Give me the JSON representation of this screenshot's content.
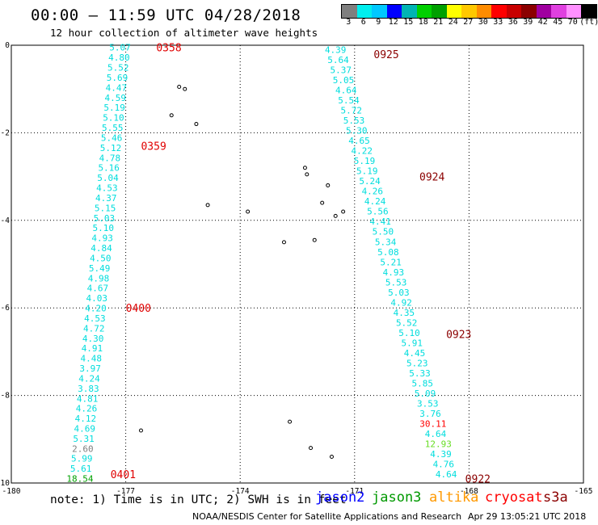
{
  "header": {
    "title": "00:00 – 11:59 UTC 04/28/2018",
    "subtitle": "12 hour collection of altimeter wave heights"
  },
  "color_scale": {
    "colors": [
      "#7f7f7f",
      "#00eeee",
      "#00c8ff",
      "#0000ff",
      "#00b4b4",
      "#00d000",
      "#00a000",
      "#ffff00",
      "#ffc800",
      "#ff8c00",
      "#ff0000",
      "#c80000",
      "#8b0000",
      "#a000a0",
      "#e040e0",
      "#ff90ff",
      "#000000"
    ],
    "labels": [
      "3",
      "6",
      "9",
      "12",
      "15",
      "18",
      "21",
      "24",
      "27",
      "30",
      "33",
      "36",
      "39",
      "42",
      "45",
      "70",
      "(ft)"
    ]
  },
  "map": {
    "x_axis": {
      "range": [
        -180,
        -165
      ],
      "ticks": [
        "-180",
        "-177",
        "-174",
        "-171",
        "-168",
        "-165"
      ]
    },
    "y_axis": {
      "range": [
        0,
        -10
      ],
      "ticks": [
        "0",
        "-2",
        "-4",
        "-6",
        "-8",
        "-10"
      ]
    },
    "pass_times": [
      {
        "label": "0358",
        "color": "#e00000",
        "lon": -176.2,
        "lat": -0.05
      },
      {
        "label": "0359",
        "color": "#e00000",
        "lon": -176.6,
        "lat": -2.3
      },
      {
        "label": "0400",
        "color": "#e00000",
        "lon": -177.0,
        "lat": -6.0
      },
      {
        "label": "0401",
        "color": "#e00000",
        "lon": -177.4,
        "lat": -9.8
      },
      {
        "label": "0925",
        "color": "#8b0000",
        "lon": -170.5,
        "lat": -0.2
      },
      {
        "label": "0924",
        "color": "#8b0000",
        "lon": -169.3,
        "lat": -3.0
      },
      {
        "label": "0923",
        "color": "#8b0000",
        "lon": -168.6,
        "lat": -6.6
      },
      {
        "label": "0922",
        "color": "#8b0000",
        "lon": -168.1,
        "lat": -9.9
      }
    ],
    "track_a": {
      "start": [
        -177.15,
        -0.05
      ],
      "end": [
        -178.2,
        -9.9
      ],
      "values": [
        "5.07",
        "4.80",
        "5.52",
        "5.69",
        "4.47",
        "4.59",
        "5.19",
        "5.10",
        "5.55",
        "5.46",
        "5.12",
        "4.78",
        "5.16",
        "5.04",
        "4.53",
        "4.37",
        "5.15",
        "5.03",
        "5.10",
        "4.93",
        "4.84",
        "4.50",
        "5.49",
        "4.98",
        "4.67",
        "4.03",
        "4.20",
        "4.53",
        "4.72",
        "4.30",
        "4.91",
        "4.48",
        "3.97",
        "4.24",
        "3.83",
        "4.81",
        "4.26",
        "4.12",
        "4.69",
        "5.31",
        "2.60",
        "5.99",
        "5.61",
        "18.54"
      ],
      "colors": [
        "#00dddd",
        "#00dddd",
        "#00dddd",
        "#00dddd",
        "#00dddd",
        "#00dddd",
        "#00dddd",
        "#00dddd",
        "#00dddd",
        "#00dddd",
        "#00dddd",
        "#00dddd",
        "#00dddd",
        "#00dddd",
        "#00dddd",
        "#00dddd",
        "#00dddd",
        "#00dddd",
        "#00dddd",
        "#00dddd",
        "#00dddd",
        "#00dddd",
        "#00dddd",
        "#00dddd",
        "#00dddd",
        "#00dddd",
        "#00dddd",
        "#00dddd",
        "#00dddd",
        "#00dddd",
        "#00dddd",
        "#00dddd",
        "#00dddd",
        "#00dddd",
        "#00dddd",
        "#00dddd",
        "#00dddd",
        "#00dddd",
        "#00dddd",
        "#00dddd",
        "#7f7f7f",
        "#00dddd",
        "#00dddd",
        "#00a000"
      ]
    },
    "track_b": {
      "start": [
        -171.5,
        -0.1
      ],
      "end": [
        -168.6,
        -9.8
      ],
      "values": [
        "4.39",
        "5.64",
        "5.37",
        "5.05",
        "4.64",
        "5.54",
        "5.72",
        "5.53",
        "5.30",
        "4.65",
        "4.22",
        "5.19",
        "5.19",
        "5.24",
        "4.26",
        "4.24",
        "5.56",
        "4.41",
        "5.50",
        "5.34",
        "5.08",
        "5.21",
        "4.93",
        "5.53",
        "5.03",
        "4.92",
        "4.35",
        "5.52",
        "5.10",
        "5.91",
        "4.45",
        "5.23",
        "5.33",
        "5.85",
        "5.09",
        "3.53",
        "3.76",
        "30.11",
        "4.64",
        "12.93",
        "4.39",
        "4.76",
        "4.64"
      ],
      "colors": [
        "#00dddd",
        "#00dddd",
        "#00dddd",
        "#00dddd",
        "#00dddd",
        "#00dddd",
        "#00dddd",
        "#00dddd",
        "#00dddd",
        "#00dddd",
        "#00dddd",
        "#00dddd",
        "#00dddd",
        "#00dddd",
        "#00dddd",
        "#00dddd",
        "#00dddd",
        "#00dddd",
        "#00dddd",
        "#00dddd",
        "#00dddd",
        "#00dddd",
        "#00dddd",
        "#00dddd",
        "#00dddd",
        "#00dddd",
        "#00dddd",
        "#00dddd",
        "#00dddd",
        "#00dddd",
        "#00dddd",
        "#00dddd",
        "#00dddd",
        "#00dddd",
        "#00dddd",
        "#00dddd",
        "#00dddd",
        "#ff0000",
        "#00dddd",
        "#66dd22",
        "#00dddd",
        "#00dddd",
        "#00dddd"
      ]
    },
    "islands": [
      {
        "lon": -175.6,
        "lat": -0.95
      },
      {
        "lon": -175.45,
        "lat": -1.0
      },
      {
        "lon": -175.8,
        "lat": -1.6
      },
      {
        "lon": -175.15,
        "lat": -1.8
      },
      {
        "lon": -172.3,
        "lat": -2.8
      },
      {
        "lon": -172.25,
        "lat": -2.95
      },
      {
        "lon": -171.7,
        "lat": -3.2
      },
      {
        "lon": -171.85,
        "lat": -3.6
      },
      {
        "lon": -171.3,
        "lat": -3.8
      },
      {
        "lon": -171.5,
        "lat": -3.9
      },
      {
        "lon": -174.85,
        "lat": -3.65
      },
      {
        "lon": -173.8,
        "lat": -3.8
      },
      {
        "lon": -172.85,
        "lat": -4.5
      },
      {
        "lon": -172.05,
        "lat": -4.45
      },
      {
        "lon": -172.7,
        "lat": -8.6
      },
      {
        "lon": -176.6,
        "lat": -8.8
      },
      {
        "lon": -172.15,
        "lat": -9.2
      },
      {
        "lon": -171.6,
        "lat": -9.4
      }
    ]
  },
  "footer": {
    "note": "note: 1) Time is in UTC; 2) SWH is in feet",
    "satellites": [
      {
        "name": "jason2",
        "color": "#0000ff"
      },
      {
        "name": "jason3",
        "color": "#009900"
      },
      {
        "name": "altika",
        "color": "#ff9900"
      },
      {
        "name": "cryosat",
        "color": "#ff0000"
      },
      {
        "name": "s3a",
        "color": "#8b0000"
      }
    ],
    "credit": "NOAA/NESDIS Center for Satellite Applications and Research",
    "timestamp": "Apr 29 13:05:21 UTC 2018"
  }
}
